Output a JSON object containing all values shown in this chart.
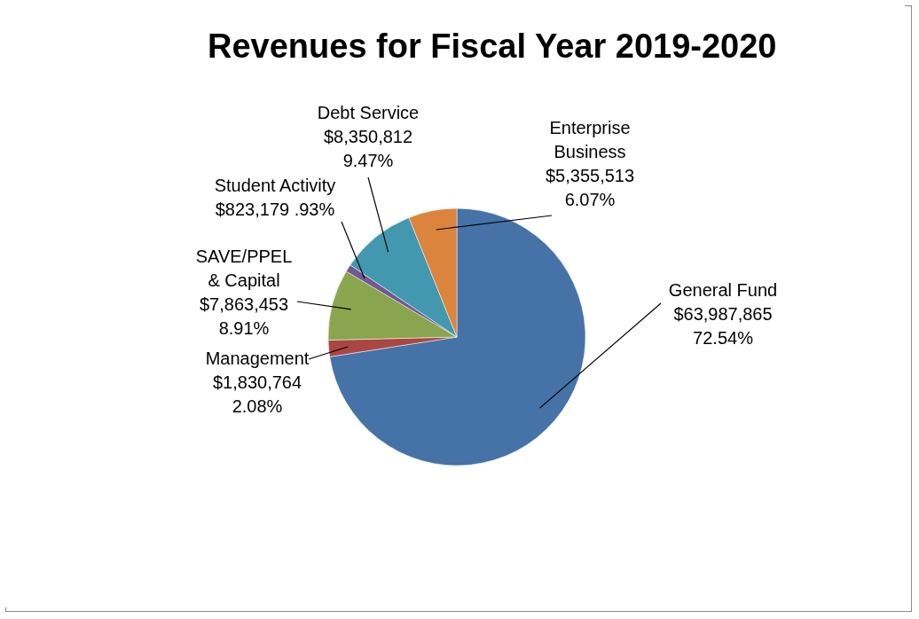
{
  "chart_data": {
    "type": "pie",
    "title": "Revenues for Fiscal Year 2019-2020",
    "categories": [
      "General Fund",
      "Management",
      "SAVE/PPEL\n& Capital",
      "Student Activity",
      "Debt Service",
      "Enterprise\nBusiness"
    ],
    "values": [
      63987865,
      1830764,
      7863453,
      823179,
      8350812,
      5355513
    ],
    "value_labels": [
      "$63,987,865\n72.54%",
      "$1,830,764\n2.08%",
      "$7,863,453\n8.91%",
      "$823,179  .93%",
      "$8,350,812\n9.47%",
      "$5,355,513\n6.07%"
    ],
    "colors": [
      "#4572a7",
      "#aa4643",
      "#89a54e",
      "#71588f",
      "#4198af",
      "#db843d"
    ],
    "legend": false
  }
}
